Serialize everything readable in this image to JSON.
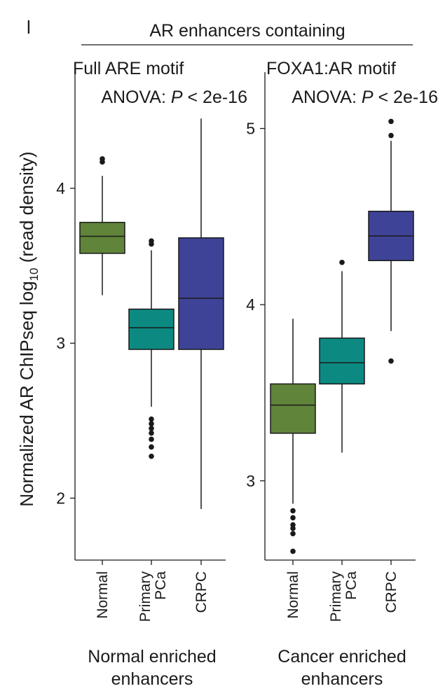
{
  "panel_letter": "l",
  "group_title": "AR enhancers containing",
  "ylabel": "Normalized AR ChIPseq log",
  "ylabel_sub": "10",
  "ylabel_tail": " (read density)",
  "colors": {
    "normal": "#5f843a",
    "primary": "#0c8a82",
    "crpc": "#3f4397"
  },
  "chart_data": [
    {
      "type": "box",
      "subtitle": "Full ARE motif",
      "stat_prefix": "ANOVA: ",
      "stat_p": "P",
      "stat_suffix": " < 2e-16",
      "xlabel_lines": [
        "Normal enriched",
        "enhancers"
      ],
      "ylim": [
        1.6,
        4.75
      ],
      "yticks": [
        2,
        3,
        4
      ],
      "categories": [
        "Normal",
        "Primary PCa",
        "CRPC"
      ],
      "boxes": [
        {
          "name": "Normal",
          "color_key": "normal",
          "low": 3.31,
          "q1": 3.58,
          "median": 3.69,
          "q3": 3.78,
          "high": 4.08,
          "outliers": [
            4.17,
            4.19
          ]
        },
        {
          "name": "Primary PCa",
          "color_key": "primary",
          "low": 2.59,
          "q1": 2.96,
          "median": 3.1,
          "q3": 3.22,
          "high": 3.6,
          "outliers": [
            3.64,
            3.66,
            2.51,
            2.48,
            2.45,
            2.42,
            2.38,
            2.33,
            2.27
          ]
        },
        {
          "name": "CRPC",
          "color_key": "crpc",
          "low": 1.93,
          "q1": 2.96,
          "median": 3.29,
          "q3": 3.68,
          "high": 4.45,
          "outliers": []
        }
      ]
    },
    {
      "type": "box",
      "subtitle": "FOXA1:AR motif",
      "stat_prefix": "ANOVA: ",
      "stat_p": "P",
      "stat_suffix": " < 2e-16",
      "xlabel_lines": [
        "Cancer enriched",
        "enhancers"
      ],
      "ylim": [
        2.55,
        5.32
      ],
      "yticks": [
        3,
        4,
        5
      ],
      "categories": [
        "Normal",
        "Primary PCa",
        "CRPC"
      ],
      "boxes": [
        {
          "name": "Normal",
          "color_key": "normal",
          "low": 2.87,
          "q1": 3.27,
          "median": 3.43,
          "q3": 3.55,
          "high": 3.92,
          "outliers": [
            2.83,
            2.79,
            2.75,
            2.73,
            2.7,
            2.6
          ]
        },
        {
          "name": "Primary PCa",
          "color_key": "primary",
          "low": 3.16,
          "q1": 3.55,
          "median": 3.67,
          "q3": 3.81,
          "high": 4.19,
          "outliers": [
            4.24
          ]
        },
        {
          "name": "CRPC",
          "color_key": "crpc",
          "low": 3.85,
          "q1": 4.25,
          "median": 4.39,
          "q3": 4.53,
          "high": 4.93,
          "outliers": [
            4.96,
            5.04,
            3.68
          ]
        }
      ]
    }
  ]
}
